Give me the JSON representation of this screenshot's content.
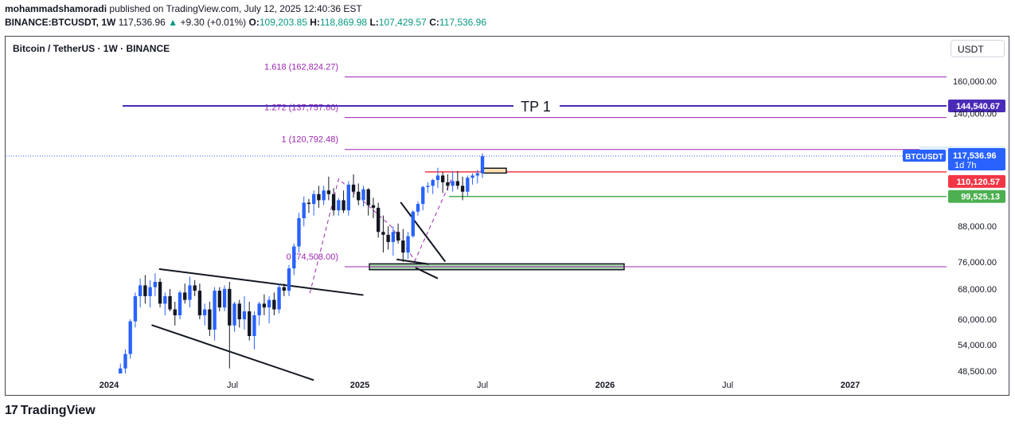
{
  "header": {
    "author": "mohammadshamoradi",
    "published": "published on TradingView.com, July 12, 2025 12:40:36 EST",
    "symbol": "BINANCE:BTCUSDT, 1W",
    "last": "117,536.96",
    "change": "+9.30 (+0.01%)",
    "o_label": "O:",
    "o_value": "109,203.85",
    "h_label": "H:",
    "h_value": "118,869.98",
    "l_label": "L:",
    "l_value": "107,429.57",
    "c_label": "C:",
    "c_value": "117,536.96"
  },
  "chart_title": "Bitcoin / TetherUS · 1W · BINANCE",
  "currency_button": "USDT",
  "branding": "TradingView",
  "colors": {
    "up": "#2962ff",
    "down": "#131722",
    "fib": "#9c27b0",
    "tp": "#4a2bb8",
    "resistance": "#f23645",
    "support": "#4caf50",
    "zone_fill": "#a5d6a7",
    "order_fill": "#ffe0b2"
  },
  "chart_data": {
    "type": "candlestick",
    "interval": "1W",
    "x_labels": [
      "2024",
      "Jul",
      "2025",
      "Jul",
      "2026",
      "Jul",
      "2027"
    ],
    "y_ticks": [
      "48,500.00",
      "54,000.00",
      "60,000.00",
      "68,000.00",
      "76,000.00",
      "88,000.00",
      "140,000.00",
      "160,000.00"
    ],
    "y_scale": "log",
    "fib_levels": [
      {
        "label": "1.618 (162,824.27)",
        "value": 162824.27
      },
      {
        "label": "1.272 (137,757.60)",
        "value": 137757.6
      },
      {
        "label": "1 (120,792.48)",
        "value": 120792.48
      },
      {
        "label": "0 (74,503.00)",
        "value": 74503.0
      }
    ],
    "target_line": {
      "label": "TP 1",
      "value": 144540.67,
      "price_label": "144,540.67"
    },
    "price_tags": [
      {
        "label": "High",
        "value": "118,869.98"
      },
      {
        "label": "BTCUSDT",
        "value": "117,536.96",
        "countdown": "1d 7h"
      },
      {
        "label": "",
        "value": "110,120.57"
      },
      {
        "label": "",
        "value": "99,525.13"
      }
    ],
    "levels": {
      "resistance": 110120.57,
      "support": 99525.13,
      "demand_zone": [
        73600,
        75400
      ]
    },
    "candles": [
      [
        45000,
        48000,
        44000,
        47500
      ],
      [
        47500,
        50000,
        46000,
        49000
      ],
      [
        49000,
        53000,
        47500,
        52000
      ],
      [
        52000,
        60000,
        51000,
        59500
      ],
      [
        59500,
        67000,
        58000,
        66000
      ],
      [
        66000,
        71000,
        63000,
        69000
      ],
      [
        69000,
        72000,
        64000,
        66000
      ],
      [
        66000,
        70500,
        63000,
        68500
      ],
      [
        68500,
        72500,
        66000,
        70000
      ],
      [
        70000,
        71000,
        63000,
        64000
      ],
      [
        64000,
        67000,
        61000,
        66000
      ],
      [
        66000,
        68000,
        62000,
        62500
      ],
      [
        62500,
        64500,
        58500,
        61000
      ],
      [
        61000,
        67500,
        60000,
        67000
      ],
      [
        67000,
        69500,
        64000,
        65000
      ],
      [
        65000,
        71500,
        63000,
        69000
      ],
      [
        69000,
        70500,
        66000,
        67500
      ],
      [
        67500,
        69500,
        60000,
        61000
      ],
      [
        61000,
        64000,
        58500,
        62500
      ],
      [
        62500,
        64500,
        56000,
        57500
      ],
      [
        57500,
        68500,
        55000,
        67500
      ],
      [
        67500,
        68500,
        62000,
        63000
      ],
      [
        63000,
        69000,
        62000,
        68000
      ],
      [
        68000,
        70000,
        49000,
        58500
      ],
      [
        58500,
        64500,
        57000,
        64000
      ],
      [
        64000,
        65000,
        58000,
        60000
      ],
      [
        60000,
        66000,
        57500,
        62000
      ],
      [
        62000,
        64500,
        55000,
        56000
      ],
      [
        56000,
        62000,
        53000,
        61000
      ],
      [
        61000,
        64500,
        58500,
        64000
      ],
      [
        64000,
        66500,
        61000,
        63000
      ],
      [
        63000,
        66000,
        59000,
        65000
      ],
      [
        65000,
        67000,
        61000,
        62500
      ],
      [
        62500,
        69500,
        61500,
        68500
      ],
      [
        68500,
        69500,
        66000,
        67500
      ],
      [
        67500,
        75000,
        66000,
        74000
      ],
      [
        74000,
        82000,
        72000,
        81000
      ],
      [
        81000,
        93000,
        79000,
        91000
      ],
      [
        91000,
        99500,
        88000,
        97000
      ],
      [
        97000,
        98500,
        93000,
        96500
      ],
      [
        96500,
        102000,
        92000,
        100500
      ],
      [
        100500,
        104000,
        95000,
        98000
      ],
      [
        98000,
        104000,
        96000,
        102000
      ],
      [
        102000,
        108000,
        98000,
        100500
      ],
      [
        100500,
        103000,
        92000,
        94000
      ],
      [
        94000,
        99000,
        92000,
        98000
      ],
      [
        98000,
        102000,
        93000,
        94000
      ],
      [
        94000,
        106000,
        92000,
        104500
      ],
      [
        104500,
        109000,
        99000,
        101500
      ],
      [
        101500,
        105000,
        96000,
        98000
      ],
      [
        98000,
        104000,
        95500,
        102500
      ],
      [
        102500,
        103000,
        92000,
        96000
      ],
      [
        96000,
        99000,
        91000,
        95000
      ],
      [
        95000,
        97000,
        84000,
        86000
      ],
      [
        86000,
        92000,
        79000,
        85000
      ],
      [
        85000,
        88000,
        80000,
        82500
      ],
      [
        82500,
        88000,
        78000,
        86000
      ],
      [
        86000,
        89000,
        82000,
        83000
      ],
      [
        83000,
        87000,
        76000,
        79000
      ],
      [
        79000,
        86000,
        77000,
        84500
      ],
      [
        84500,
        94000,
        84000,
        93500
      ],
      [
        93500,
        97500,
        92000,
        96500
      ],
      [
        96500,
        104000,
        94000,
        103500
      ],
      [
        103500,
        105500,
        101000,
        104000
      ],
      [
        104000,
        107000,
        100500,
        106500
      ],
      [
        106500,
        112000,
        103000,
        108500
      ],
      [
        108500,
        110000,
        101000,
        105500
      ],
      [
        105500,
        109000,
        102000,
        104000
      ],
      [
        104000,
        110500,
        101500,
        106000
      ],
      [
        106000,
        110500,
        102500,
        104000
      ],
      [
        104000,
        108000,
        98000,
        101500
      ],
      [
        101500,
        108500,
        99500,
        107500
      ],
      [
        107500,
        109500,
        104500,
        108500
      ],
      [
        108500,
        111000,
        105000,
        109500
      ],
      [
        109500,
        118900,
        107400,
        117500
      ]
    ]
  }
}
